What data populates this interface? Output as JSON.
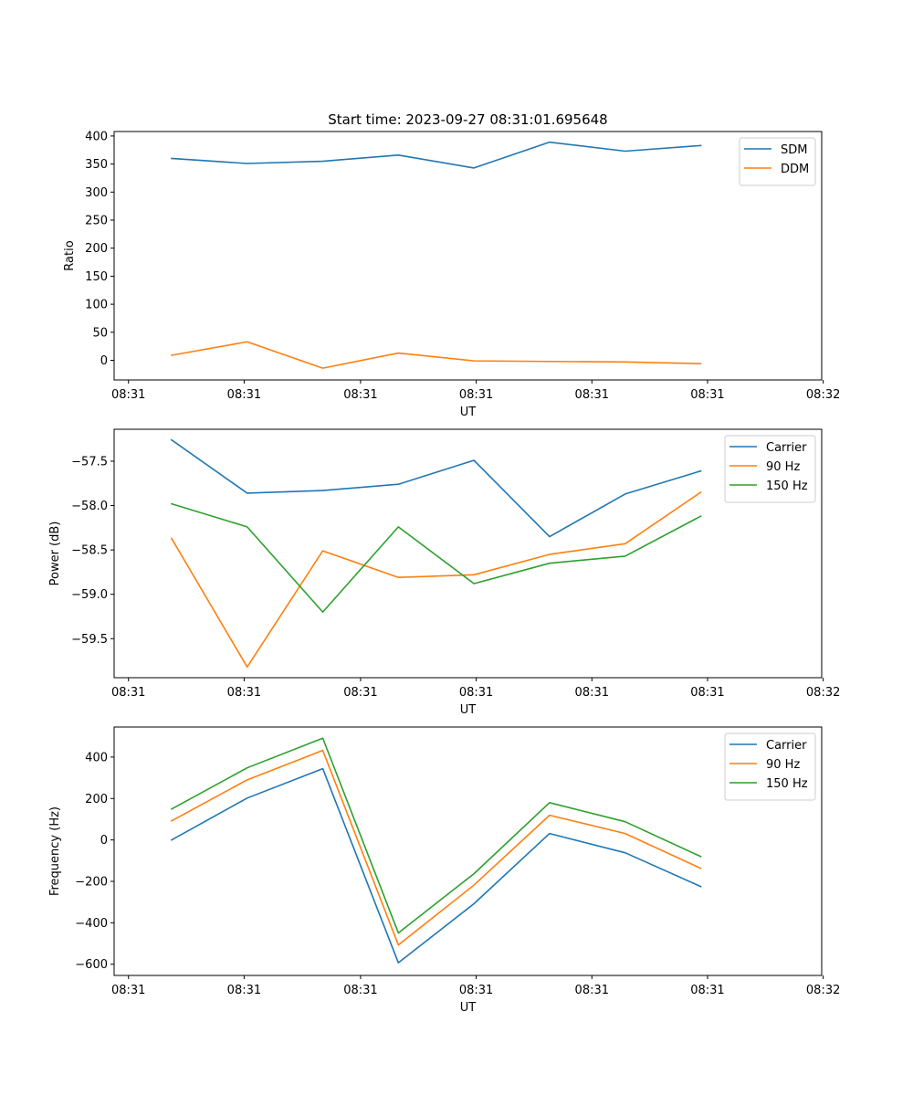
{
  "chart_data": [
    {
      "type": "line",
      "title": "Start time: 2023-09-27 08:31:01.695648",
      "xlabel": "UT",
      "ylabel": "Ratio",
      "x_tick_labels": [
        "08:31",
        "08:31",
        "08:31",
        "08:31",
        "08:31",
        "08:31",
        "08:32"
      ],
      "x": [
        1,
        2,
        3,
        4,
        5,
        6,
        7,
        8
      ],
      "xlim": [
        0.24,
        9.6
      ],
      "x_ticks": [
        0.43,
        1.96,
        3.5,
        5.03,
        6.56,
        8.09,
        9.62
      ],
      "ylim": [
        -35,
        408
      ],
      "y_ticks": [
        0,
        50,
        100,
        150,
        200,
        250,
        300,
        350,
        400
      ],
      "y_tick_labels": [
        "0",
        "50",
        "100",
        "150",
        "200",
        "250",
        "300",
        "350",
        "400"
      ],
      "legend_position": "top-right",
      "grid": false,
      "series": [
        {
          "name": "SDM",
          "color": "#1f77b4",
          "values": [
            360,
            351,
            355,
            366,
            343,
            389,
            373,
            383
          ]
        },
        {
          "name": "DDM",
          "color": "#ff7f0e",
          "values": [
            9,
            33,
            -14,
            13,
            -1,
            -2,
            -3,
            -6
          ]
        }
      ]
    },
    {
      "type": "line",
      "title": "",
      "xlabel": "UT",
      "ylabel": "Power (dB)",
      "x_tick_labels": [
        "08:31",
        "08:31",
        "08:31",
        "08:31",
        "08:31",
        "08:31",
        "08:32"
      ],
      "x": [
        1,
        2,
        3,
        4,
        5,
        6,
        7,
        8
      ],
      "xlim": [
        0.24,
        9.6
      ],
      "x_ticks": [
        0.43,
        1.96,
        3.5,
        5.03,
        6.56,
        8.09,
        9.62
      ],
      "ylim": [
        -59.94,
        -57.14
      ],
      "y_ticks": [
        -59.5,
        -59.0,
        -58.5,
        -58.0,
        -57.5
      ],
      "y_tick_labels": [
        "−59.5",
        "−59.0",
        "−58.5",
        "−58.0",
        "−57.5"
      ],
      "legend_position": "top-right",
      "grid": false,
      "series": [
        {
          "name": "Carrier",
          "color": "#1f77b4",
          "values": [
            -57.26,
            -57.86,
            -57.83,
            -57.76,
            -57.49,
            -58.35,
            -57.87,
            -57.61
          ]
        },
        {
          "name": "90 Hz",
          "color": "#ff7f0e",
          "values": [
            -58.37,
            -59.82,
            -58.51,
            -58.81,
            -58.78,
            -58.55,
            -58.43,
            -57.85
          ]
        },
        {
          "name": "150 Hz",
          "color": "#2ca02c",
          "values": [
            -57.98,
            -58.24,
            -59.2,
            -58.24,
            -58.88,
            -58.65,
            -58.57,
            -58.12
          ]
        }
      ]
    },
    {
      "type": "line",
      "title": "",
      "xlabel": "UT",
      "ylabel": "Frequency (Hz)",
      "x_tick_labels": [
        "08:31",
        "08:31",
        "08:31",
        "08:31",
        "08:31",
        "08:31",
        "08:32"
      ],
      "x": [
        1,
        2,
        3,
        4,
        5,
        6,
        7,
        8
      ],
      "xlim": [
        0.24,
        9.6
      ],
      "x_ticks": [
        0.43,
        1.96,
        3.5,
        5.03,
        6.56,
        8.09,
        9.62
      ],
      "ylim": [
        -654,
        545
      ],
      "y_ticks": [
        -600,
        -400,
        -200,
        0,
        200,
        400
      ],
      "y_tick_labels": [
        "−600",
        "−400",
        "−200",
        "0",
        "200",
        "400"
      ],
      "legend_position": "top-right",
      "grid": false,
      "series": [
        {
          "name": "Carrier",
          "color": "#1f77b4",
          "values": [
            0,
            202,
            344,
            -593,
            -308,
            31,
            -62,
            -225
          ]
        },
        {
          "name": "90 Hz",
          "color": "#ff7f0e",
          "values": [
            92,
            290,
            432,
            -507,
            -218,
            119,
            31,
            -137
          ]
        },
        {
          "name": "150 Hz",
          "color": "#2ca02c",
          "values": [
            149,
            348,
            491,
            -449,
            -163,
            180,
            88,
            -80
          ]
        }
      ]
    }
  ]
}
